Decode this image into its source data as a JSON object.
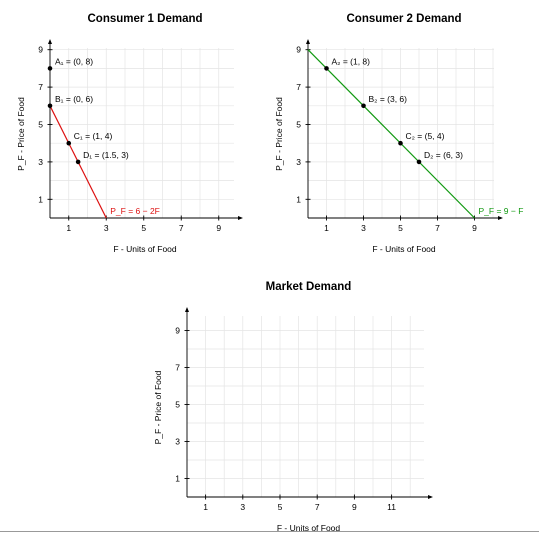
{
  "chart_data": [
    {
      "type": "line",
      "title": "Consumer 1 Demand",
      "xlabel": "F - Units of Food",
      "ylabel": "P_F - Price of Food",
      "xticks": [
        1,
        3,
        5,
        7,
        9
      ],
      "yticks": [
        1,
        3,
        5,
        7,
        9
      ],
      "xlim": [
        0,
        10
      ],
      "ylim": [
        0,
        10
      ],
      "grid": true,
      "series": [
        {
          "name": "P_F = 6 − 2F",
          "color": "#dd1111",
          "x": [
            0,
            3
          ],
          "y": [
            6,
            0
          ]
        }
      ],
      "points": [
        {
          "label": "A₁ = (0, 8)",
          "x": 0,
          "y": 8
        },
        {
          "label": "B₁ = (0, 6)",
          "x": 0,
          "y": 6
        },
        {
          "label": "C₁ = (1, 4)",
          "x": 1,
          "y": 4
        },
        {
          "label": "D₁ = (1.5, 3)",
          "x": 1.5,
          "y": 3
        }
      ]
    },
    {
      "type": "line",
      "title": "Consumer 2 Demand",
      "xlabel": "F - Units of Food",
      "ylabel": "P_F - Price of Food",
      "xticks": [
        1,
        3,
        5,
        7,
        9
      ],
      "yticks": [
        1,
        3,
        5,
        7,
        9
      ],
      "xlim": [
        0,
        10
      ],
      "ylim": [
        0,
        10
      ],
      "grid": true,
      "series": [
        {
          "name": "P_F = 9 − F",
          "color": "#119911",
          "x": [
            0,
            9
          ],
          "y": [
            9,
            0
          ]
        }
      ],
      "points": [
        {
          "label": "A₂ = (1, 8)",
          "x": 1,
          "y": 8
        },
        {
          "label": "B₂ = (3, 6)",
          "x": 3,
          "y": 6
        },
        {
          "label": "C₂ = (5, 4)",
          "x": 5,
          "y": 4
        },
        {
          "label": "D₂ = (6, 3)",
          "x": 6,
          "y": 3
        }
      ]
    },
    {
      "type": "line",
      "title": "Market Demand",
      "xlabel": "F - Units of Food",
      "ylabel": "P_F - Price of Food",
      "xticks": [
        1,
        3,
        5,
        7,
        9,
        11
      ],
      "yticks": [
        1,
        3,
        5,
        7,
        9
      ],
      "xlim": [
        0,
        13
      ],
      "ylim": [
        0,
        10
      ],
      "grid": true,
      "series": [],
      "points": []
    }
  ]
}
